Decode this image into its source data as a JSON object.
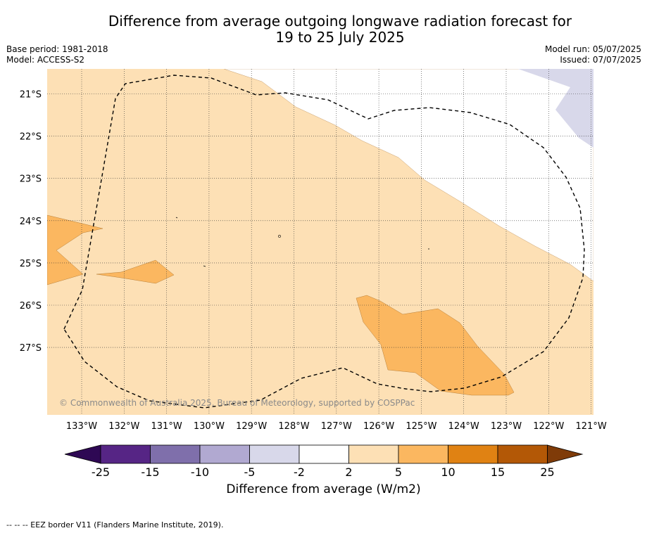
{
  "title_line1": "Difference from average outgoing longwave radiation forecast for",
  "title_line2": "19 to 25 July 2025",
  "base_period": "Base period: 1981-2018",
  "model": "Model: ACCESS-S2",
  "model_run": "Model run: 05/07/2025",
  "issued": "Issued: 07/07/2025",
  "copyright": "© Commonwealth of Australia 2025, Bureau of Meteorology, supported by COSPPac",
  "footnote": "-- -- -- EEZ border V11 (Flanders Marine Institute, 2019).",
  "chart_data": {
    "type": "heatmap",
    "x_ticks": [
      "133°W",
      "132°W",
      "131°W",
      "130°W",
      "129°W",
      "128°W",
      "127°W",
      "126°W",
      "125°W",
      "124°W",
      "123°W",
      "122°W",
      "121°W"
    ],
    "y_ticks": [
      "21°S",
      "22°S",
      "23°S",
      "24°S",
      "25°S",
      "26°S",
      "27°S"
    ],
    "lon_range": [
      -133.8,
      -120.9
    ],
    "lat_range": [
      -28.6,
      -20.4
    ],
    "grid": true,
    "colorbar": {
      "title": "Difference from average (W/m2)",
      "tick_labels": [
        "-25",
        "-15",
        "-10",
        "-5",
        "-2",
        "2",
        "5",
        "10",
        "15",
        "25"
      ],
      "colors": [
        "#2e0854",
        "#562585",
        "#7f6fab",
        "#b1a9d1",
        "#d8d8ea",
        "#ffffff",
        "#fde0b5",
        "#fbb760",
        "#e08213",
        "#b35806",
        "#7f3b08"
      ],
      "extend": "both"
    },
    "regions": [
      {
        "class": "2 to 5",
        "color": "#fde0b5"
      },
      {
        "class": "5 to 10",
        "color": "#fbb760"
      },
      {
        "class": "-5 to -2",
        "color": "#d8d8ea"
      }
    ]
  }
}
